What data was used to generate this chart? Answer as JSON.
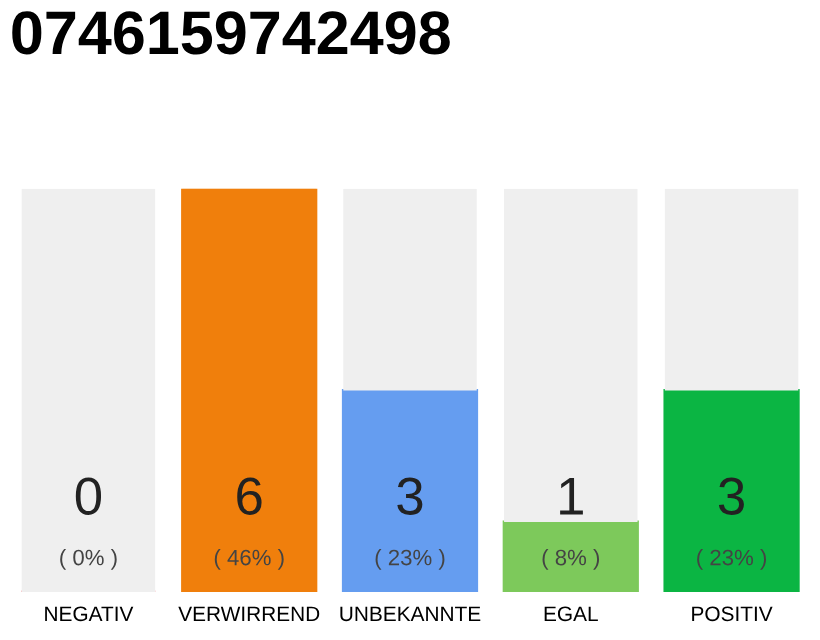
{
  "chart_data": {
    "type": "bar",
    "title": "0746159742498",
    "categories": [
      "NEGATIV",
      "VERWIRREND",
      "UNBEKANNTE",
      "EGAL",
      "POSITIV"
    ],
    "stacked": true,
    "grid": false,
    "series": [
      {
        "colors": [
          "#e8303a",
          "#f07f0c",
          "#659df0",
          "#7dc95b",
          "#0bb543"
        ],
        "values": [
          0,
          46,
          23,
          8,
          23
        ],
        "value_labels": [
          "( 0% )",
          "( 46% )",
          "( 23% )",
          "( 8% )",
          "( 23% )"
        ]
      },
      {
        "color": "#efefef",
        "values": [
          46,
          0,
          23,
          38,
          23
        ]
      }
    ],
    "annotations": [
      "0",
      "6",
      "3",
      "1",
      "3"
    ]
  }
}
